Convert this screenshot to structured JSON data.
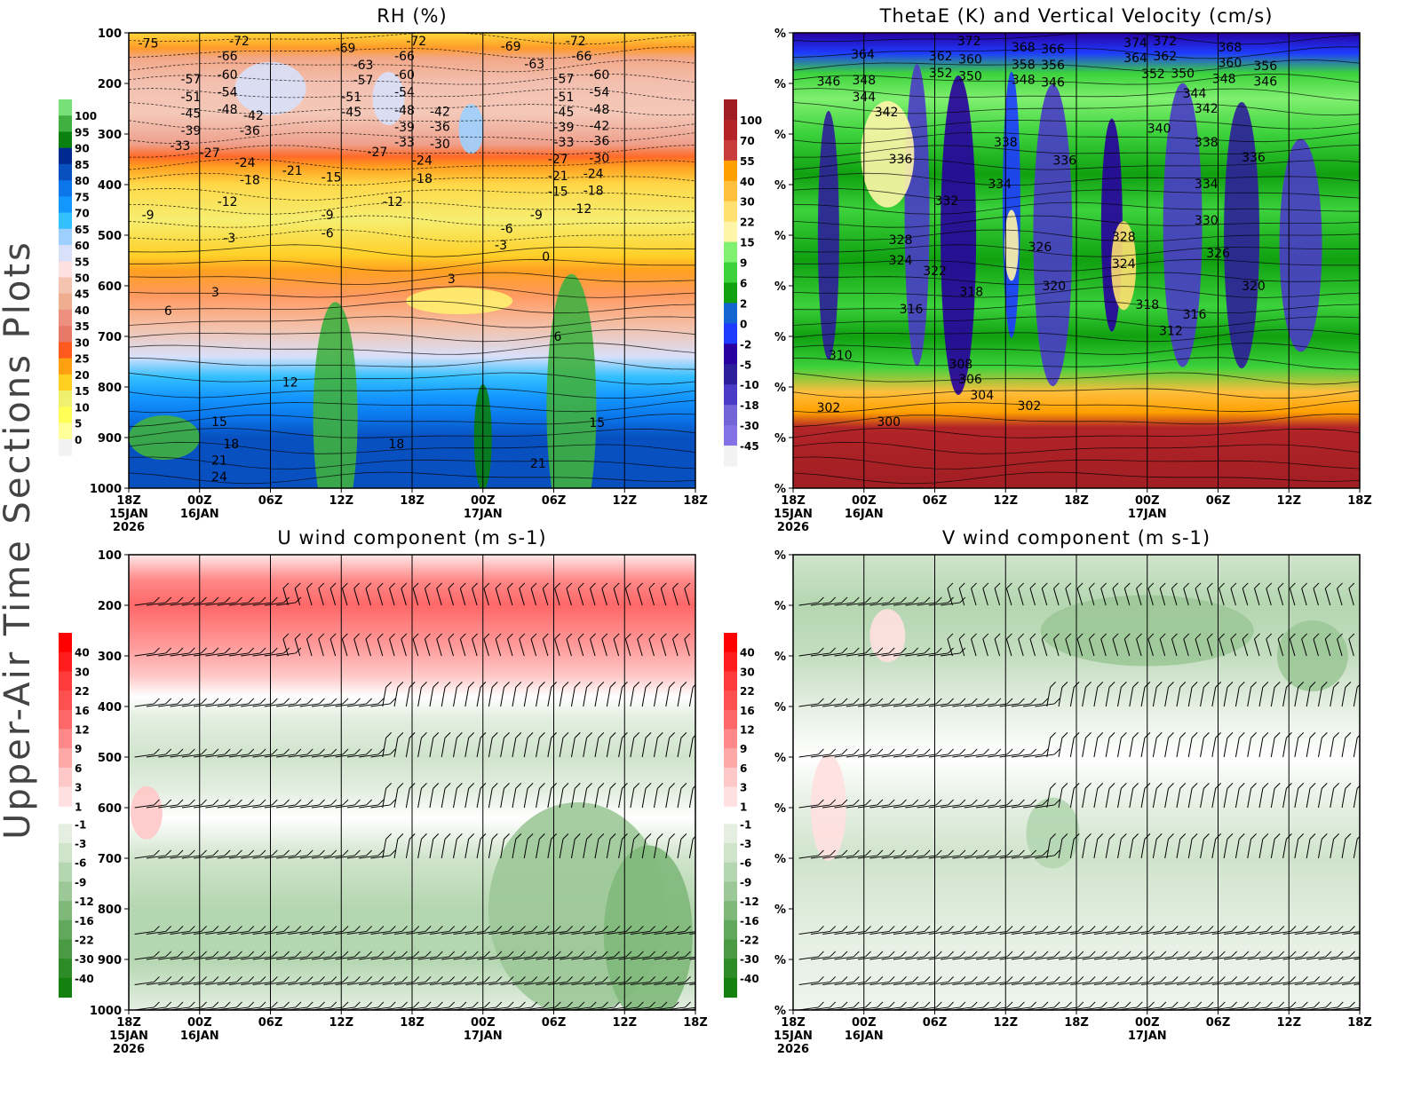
{
  "side_title": "Upper-Air Time Sections Plots",
  "chart_data": [
    {
      "type": "heatmap",
      "title": "RH (%)",
      "y_ticks": [
        "100",
        "200",
        "300",
        "400",
        "500",
        "600",
        "700",
        "800",
        "900",
        "1000"
      ],
      "ylim": [
        100,
        1000
      ],
      "x_ticks": [
        {
          "label": "18Z",
          "sub": [
            "15JAN",
            "2026"
          ]
        },
        {
          "label": "00Z",
          "sub": [
            "16JAN"
          ]
        },
        {
          "label": "06Z",
          "sub": []
        },
        {
          "label": "12Z",
          "sub": []
        },
        {
          "label": "18Z",
          "sub": []
        },
        {
          "label": "00Z",
          "sub": [
            "17JAN"
          ]
        },
        {
          "label": "06Z",
          "sub": []
        },
        {
          "label": "12Z",
          "sub": []
        },
        {
          "label": "18Z",
          "sub": []
        }
      ],
      "colorbar": {
        "labels": [
          "100",
          "95",
          "90",
          "85",
          "80",
          "75",
          "70",
          "65",
          "60",
          "55",
          "50",
          "45",
          "40",
          "35",
          "30",
          "25",
          "20",
          "15",
          "10",
          "5",
          "0"
        ],
        "colors": [
          "#78e078",
          "#40b040",
          "#0a8010",
          "#002a90",
          "#0850c0",
          "#0a76ea",
          "#1496ff",
          "#33c0ff",
          "#9dd0ff",
          "#d8e0fa",
          "#fde0e0",
          "#f4c4b0",
          "#efae90",
          "#ed9080",
          "#e87868",
          "#ff5a1e",
          "#ffa010",
          "#ffd020",
          "#f0f070",
          "#ffff55",
          "#ffff99",
          "#f2f2f2"
        ]
      },
      "contour_labels": [
        {
          "v": "-75",
          "h": 0.8,
          "p": 106
        },
        {
          "v": "-72",
          "h": 8.5,
          "p": 116
        },
        {
          "v": "-66",
          "h": 7.5,
          "p": 146
        },
        {
          "v": "-60",
          "h": 7.5,
          "p": 175
        },
        {
          "v": "-57",
          "h": 4.4,
          "p": 191
        },
        {
          "v": "-51",
          "h": 4.4,
          "p": 212
        },
        {
          "v": "-54",
          "h": 7.5,
          "p": 203
        },
        {
          "v": "-48",
          "h": 7.5,
          "p": 230
        },
        {
          "v": "-45",
          "h": 4.4,
          "p": 245
        },
        {
          "v": "-39",
          "h": 4.4,
          "p": 265
        },
        {
          "v": "-33",
          "h": 3.5,
          "p": 288
        },
        {
          "v": "-42",
          "h": 9.4,
          "p": 263
        },
        {
          "v": "-36",
          "h": 9.4,
          "p": 286
        },
        {
          "v": "-69",
          "h": 17.5,
          "p": 130
        },
        {
          "v": "-63",
          "h": 19,
          "p": 163
        },
        {
          "v": "-57",
          "h": 19,
          "p": 193
        },
        {
          "v": "-51",
          "h": 18,
          "p": 212
        },
        {
          "v": "-45",
          "h": 18,
          "p": 242
        },
        {
          "v": "-72",
          "h": 23.5,
          "p": 116
        },
        {
          "v": "-66",
          "h": 22.5,
          "p": 146
        },
        {
          "v": "-60",
          "h": 22.5,
          "p": 175
        },
        {
          "v": "-54",
          "h": 22.5,
          "p": 203
        },
        {
          "v": "-48",
          "h": 22.5,
          "p": 232
        },
        {
          "v": "-39",
          "h": 22.5,
          "p": 265
        },
        {
          "v": "-33",
          "h": 22.5,
          "p": 288
        },
        {
          "v": "-42",
          "h": 25.5,
          "p": 255
        },
        {
          "v": "-36",
          "h": 25.5,
          "p": 278
        },
        {
          "v": "-30",
          "h": 25.5,
          "p": 305
        },
        {
          "v": "-69",
          "h": 31.5,
          "p": 126
        },
        {
          "v": "-63",
          "h": 33.5,
          "p": 161
        },
        {
          "v": "-72",
          "h": 37,
          "p": 116
        },
        {
          "v": "-66",
          "h": 37.5,
          "p": 146
        },
        {
          "v": "-60",
          "h": 39,
          "p": 175
        },
        {
          "v": "-57",
          "h": 36,
          "p": 190
        },
        {
          "v": "-54",
          "h": 39,
          "p": 203
        },
        {
          "v": "-51",
          "h": 36,
          "p": 212
        },
        {
          "v": "-48",
          "h": 39,
          "p": 230
        },
        {
          "v": "-45",
          "h": 36,
          "p": 242
        },
        {
          "v": "-42",
          "h": 39,
          "p": 255
        },
        {
          "v": "-39",
          "h": 36,
          "p": 265
        },
        {
          "v": "-36",
          "h": 39,
          "p": 278
        },
        {
          "v": "-33",
          "h": 36,
          "p": 288
        },
        {
          "v": "-30",
          "h": 39,
          "p": 305
        },
        {
          "v": "-27",
          "h": 6,
          "p": 337
        },
        {
          "v": "-24",
          "h": 9,
          "p": 356
        },
        {
          "v": "-21",
          "h": 13,
          "p": 372
        },
        {
          "v": "-18",
          "h": 9.4,
          "p": 390
        },
        {
          "v": "-15",
          "h": 16.3,
          "p": 385
        },
        {
          "v": "-27",
          "h": 20.5,
          "p": 335
        },
        {
          "v": "-24",
          "h": 24,
          "p": 352
        },
        {
          "v": "-18",
          "h": 24,
          "p": 388
        },
        {
          "v": "-27",
          "h": 35.5,
          "p": 335
        },
        {
          "v": "-24",
          "h": 38.5,
          "p": 350
        },
        {
          "v": "-21",
          "h": 35.5,
          "p": 368
        },
        {
          "v": "-18",
          "h": 38.5,
          "p": 390
        },
        {
          "v": "-15",
          "h": 35.5,
          "p": 385
        },
        {
          "v": "-12",
          "h": 7.5,
          "p": 433
        },
        {
          "v": "-12",
          "h": 21.5,
          "p": 433
        },
        {
          "v": "-12",
          "h": 37.5,
          "p": 433
        },
        {
          "v": "-9",
          "h": 1.1,
          "p": 460
        },
        {
          "v": "-9",
          "h": 16.3,
          "p": 460
        },
        {
          "v": "-6",
          "h": 16.3,
          "p": 482
        },
        {
          "v": "-9",
          "h": 34,
          "p": 460
        },
        {
          "v": "-6",
          "h": 31.5,
          "p": 487
        },
        {
          "v": "-3",
          "h": 8,
          "p": 505
        },
        {
          "v": "-3",
          "h": 31,
          "p": 505
        },
        {
          "v": "0",
          "h": 35,
          "p": 542
        },
        {
          "v": "3",
          "h": 7,
          "p": 612
        },
        {
          "v": "3",
          "h": 27,
          "p": 586
        },
        {
          "v": "6",
          "h": 3,
          "p": 649
        },
        {
          "v": "6",
          "h": 36,
          "p": 700
        },
        {
          "v": "12",
          "h": 13,
          "p": 790
        },
        {
          "v": "15",
          "h": 7,
          "p": 868
        },
        {
          "v": "15",
          "h": 39,
          "p": 870
        },
        {
          "v": "18",
          "h": 8,
          "p": 912
        },
        {
          "v": "18",
          "h": 22,
          "p": 912
        },
        {
          "v": "21",
          "h": 7,
          "p": 945
        },
        {
          "v": "21",
          "h": 34,
          "p": 951
        },
        {
          "v": "24",
          "h": 7,
          "p": 984
        }
      ]
    },
    {
      "type": "heatmap",
      "title": "ThetaE (K) and Vertical Velocity (cm/s)",
      "y_ticks": [
        "%",
        "%",
        "%",
        "%",
        "%",
        "%",
        "%",
        "%",
        "%",
        "%"
      ],
      "x_ticks": [
        {
          "label": "18Z",
          "sub": [
            "15JAN",
            "2026"
          ]
        },
        {
          "label": "00Z",
          "sub": [
            "16JAN"
          ]
        },
        {
          "label": "06Z",
          "sub": []
        },
        {
          "label": "12Z",
          "sub": []
        },
        {
          "label": "18Z",
          "sub": []
        },
        {
          "label": "00Z",
          "sub": [
            "17JAN"
          ]
        },
        {
          "label": "06Z",
          "sub": []
        },
        {
          "label": "12Z",
          "sub": []
        },
        {
          "label": "18Z",
          "sub": []
        }
      ],
      "colorbar": {
        "labels": [
          "100",
          "70",
          "55",
          "40",
          "30",
          "22",
          "15",
          "9",
          "6",
          "2",
          "0",
          "-2",
          "-5",
          "-10",
          "-18",
          "-30",
          "-45"
        ],
        "colors": [
          "#a01e22",
          "#b22428",
          "#c83c3c",
          "#ffa000",
          "#ffbe3c",
          "#ffe070",
          "#fff5a8",
          "#80f070",
          "#3cd23c",
          "#10a010",
          "#1464d2",
          "#1e3cff",
          "#2800a0",
          "#2d1e9b",
          "#4b3cc8",
          "#7364d7",
          "#8272e6",
          "#f2f2f2"
        ]
      },
      "contour_labels": [
        {
          "v": "374",
          "h": 28,
          "p": 112
        },
        {
          "v": "372",
          "h": 13.9,
          "p": 116
        },
        {
          "v": "372",
          "h": 30.5,
          "p": 116
        },
        {
          "v": "368",
          "h": 18.5,
          "p": 128
        },
        {
          "v": "366",
          "h": 21,
          "p": 132
        },
        {
          "v": "368",
          "h": 36,
          "p": 128
        },
        {
          "v": "364",
          "h": 4.9,
          "p": 142
        },
        {
          "v": "362",
          "h": 11.5,
          "p": 146
        },
        {
          "v": "360",
          "h": 14,
          "p": 152
        },
        {
          "v": "358",
          "h": 18.5,
          "p": 155
        },
        {
          "v": "356",
          "h": 21,
          "p": 163
        },
        {
          "v": "364",
          "h": 28,
          "p": 142
        },
        {
          "v": "362",
          "h": 30.5,
          "p": 146
        },
        {
          "v": "360",
          "h": 36,
          "p": 152
        },
        {
          "v": "356",
          "h": 39,
          "p": 165
        },
        {
          "v": "352",
          "h": 11.5,
          "p": 172
        },
        {
          "v": "350",
          "h": 14,
          "p": 178
        },
        {
          "v": "348",
          "h": 18.5,
          "p": 185
        },
        {
          "v": "346",
          "h": 21,
          "p": 190
        },
        {
          "v": "352",
          "h": 29.5,
          "p": 174
        },
        {
          "v": "350",
          "h": 32,
          "p": 180
        },
        {
          "v": "348",
          "h": 35.5,
          "p": 190
        },
        {
          "v": "346",
          "h": 39,
          "p": 196
        },
        {
          "v": "346",
          "h": 2,
          "p": 196
        },
        {
          "v": "348",
          "h": 5,
          "p": 193
        },
        {
          "v": "344",
          "h": 5,
          "p": 219
        },
        {
          "v": "344",
          "h": 33,
          "p": 219
        },
        {
          "v": "342",
          "h": 6.9,
          "p": 249
        },
        {
          "v": "342",
          "h": 34,
          "p": 249
        },
        {
          "v": "340",
          "h": 30,
          "p": 289
        },
        {
          "v": "338",
          "h": 17,
          "p": 316
        },
        {
          "v": "338",
          "h": 34,
          "p": 316
        },
        {
          "v": "336",
          "h": 8.1,
          "p": 349
        },
        {
          "v": "336",
          "h": 22,
          "p": 352
        },
        {
          "v": "336",
          "h": 38,
          "p": 346
        },
        {
          "v": "334",
          "h": 16.5,
          "p": 398
        },
        {
          "v": "334",
          "h": 34,
          "p": 398
        },
        {
          "v": "332",
          "h": 12,
          "p": 432
        },
        {
          "v": "330",
          "h": 34,
          "p": 470
        },
        {
          "v": "328",
          "h": 8.1,
          "p": 509
        },
        {
          "v": "328",
          "h": 27,
          "p": 503
        },
        {
          "v": "326",
          "h": 19.9,
          "p": 523
        },
        {
          "v": "326",
          "h": 35,
          "p": 535
        },
        {
          "v": "324",
          "h": 8.1,
          "p": 549
        },
        {
          "v": "324",
          "h": 27,
          "p": 556
        },
        {
          "v": "322",
          "h": 11,
          "p": 570
        },
        {
          "v": "320",
          "h": 21.1,
          "p": 600
        },
        {
          "v": "320",
          "h": 38,
          "p": 600
        },
        {
          "v": "318",
          "h": 14.1,
          "p": 611
        },
        {
          "v": "318",
          "h": 29,
          "p": 637
        },
        {
          "v": "316",
          "h": 9,
          "p": 646
        },
        {
          "v": "316",
          "h": 33,
          "p": 656
        },
        {
          "v": "312",
          "h": 31,
          "p": 689
        },
        {
          "v": "310",
          "h": 3,
          "p": 737
        },
        {
          "v": "308",
          "h": 13.2,
          "p": 754
        },
        {
          "v": "306",
          "h": 14,
          "p": 784
        },
        {
          "v": "304",
          "h": 15,
          "p": 809
        },
        {
          "v": "302",
          "h": 2,
          "p": 840
        },
        {
          "v": "302",
          "h": 19,
          "p": 837
        },
        {
          "v": "300",
          "h": 7.1,
          "p": 868
        }
      ]
    },
    {
      "type": "heatmap",
      "title": "U wind component (m s-1)",
      "y_ticks": [
        "100",
        "200",
        "300",
        "400",
        "500",
        "600",
        "700",
        "800",
        "900",
        "1000"
      ],
      "ylim": [
        100,
        1000
      ],
      "x_ticks": [
        {
          "label": "18Z",
          "sub": [
            "15JAN",
            "2026"
          ]
        },
        {
          "label": "00Z",
          "sub": [
            "16JAN"
          ]
        },
        {
          "label": "06Z",
          "sub": []
        },
        {
          "label": "12Z",
          "sub": []
        },
        {
          "label": "18Z",
          "sub": []
        },
        {
          "label": "00Z",
          "sub": [
            "17JAN"
          ]
        },
        {
          "label": "06Z",
          "sub": []
        },
        {
          "label": "12Z",
          "sub": []
        },
        {
          "label": "18Z",
          "sub": []
        }
      ],
      "colorbar": {
        "labels": [
          "40",
          "30",
          "22",
          "16",
          "12",
          "9",
          "6",
          "3",
          "1",
          "-1",
          "-3",
          "-6",
          "-9",
          "-12",
          "-16",
          "-22",
          "-30",
          "-40"
        ],
        "colors": [
          "#ff0000",
          "#ff1c1c",
          "#ff3a3a",
          "#ff5050",
          "#ff6868",
          "#ff8888",
          "#ffa8a8",
          "#ffc8c8",
          "#ffe0e0",
          "#ffffff",
          "#e4efe2",
          "#d0e4cc",
          "#b4d6b0",
          "#9cc898",
          "#80b87a",
          "#62a85c",
          "#4a9a44",
          "#2e8c28",
          "#148010"
        ]
      },
      "wind_barb_levels": [
        200,
        300,
        400,
        500,
        600,
        700,
        850,
        900,
        950,
        1000
      ]
    },
    {
      "type": "heatmap",
      "title": "V wind component (m s-1)",
      "y_ticks": [
        "%",
        "%",
        "%",
        "%",
        "%",
        "%",
        "%",
        "%",
        "%",
        "%"
      ],
      "x_ticks": [
        {
          "label": "18Z",
          "sub": [
            "15JAN",
            "2026"
          ]
        },
        {
          "label": "00Z",
          "sub": [
            "16JAN"
          ]
        },
        {
          "label": "06Z",
          "sub": []
        },
        {
          "label": "12Z",
          "sub": []
        },
        {
          "label": "18Z",
          "sub": []
        },
        {
          "label": "00Z",
          "sub": [
            "17JAN"
          ]
        },
        {
          "label": "06Z",
          "sub": []
        },
        {
          "label": "12Z",
          "sub": []
        },
        {
          "label": "18Z",
          "sub": []
        }
      ],
      "colorbar": {
        "labels": [
          "40",
          "30",
          "22",
          "16",
          "12",
          "9",
          "6",
          "3",
          "1",
          "-1",
          "-3",
          "-6",
          "-9",
          "-12",
          "-16",
          "-22",
          "-30",
          "-40"
        ],
        "colors": [
          "#ff0000",
          "#ff1c1c",
          "#ff3a3a",
          "#ff5050",
          "#ff6868",
          "#ff8888",
          "#ffa8a8",
          "#ffc8c8",
          "#ffe0e0",
          "#ffffff",
          "#e4efe2",
          "#d0e4cc",
          "#b4d6b0",
          "#9cc898",
          "#80b87a",
          "#62a85c",
          "#4a9a44",
          "#2e8c28",
          "#148010"
        ]
      },
      "wind_barb_levels": [
        200,
        300,
        400,
        500,
        600,
        700,
        850,
        900,
        950,
        1000
      ]
    }
  ]
}
